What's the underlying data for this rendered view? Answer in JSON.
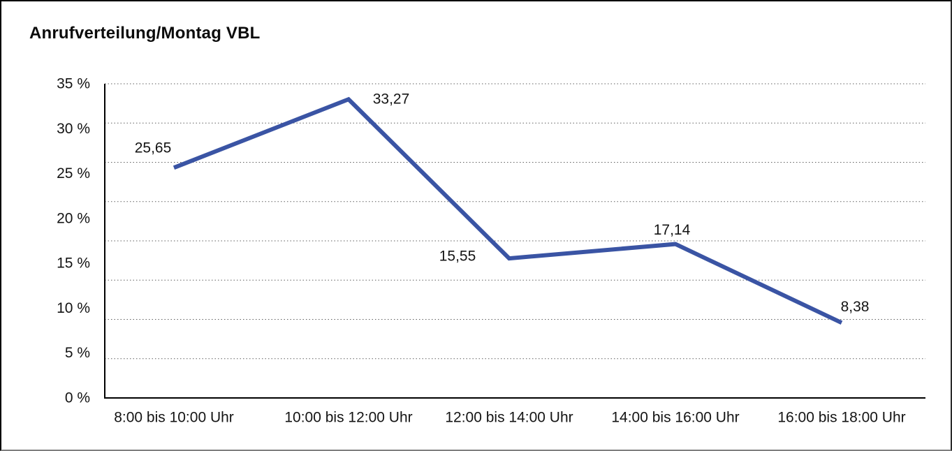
{
  "chart": {
    "title": "Anrufverteilung/Montag VBL"
  },
  "chart_data": {
    "type": "line",
    "title": "Anrufverteilung/Montag VBL",
    "categories": [
      "8:00 bis 10:00 Uhr",
      "10:00 bis 12:00 Uhr",
      "12:00 bis 14:00 Uhr",
      "14:00 bis 16:00 Uhr",
      "16:00 bis 18:00 Uhr"
    ],
    "values": [
      25.65,
      33.27,
      15.55,
      17.14,
      8.38
    ],
    "point_labels": [
      "25,65",
      "33,27",
      "15,55",
      "17,14",
      "8,38"
    ],
    "y_ticks": [
      "35 %",
      "30 %",
      "25 %",
      "20 %",
      "15 %",
      "10 %",
      "5 %",
      "0 %"
    ],
    "y_tick_values": [
      35,
      30,
      25,
      20,
      15,
      10,
      5,
      0
    ],
    "ylim": [
      0,
      35
    ],
    "y_unit": "%",
    "xlabel": "",
    "ylabel": "",
    "grid": "horizontal-dotted",
    "gridline_count": 9,
    "legend": "none",
    "decimal_separator": ",",
    "line_color": "#3A54A4",
    "axis_color": "#000000",
    "gridline_color": "#5f5f5f",
    "text_color": "#141414",
    "background_color": "#ffffff"
  }
}
